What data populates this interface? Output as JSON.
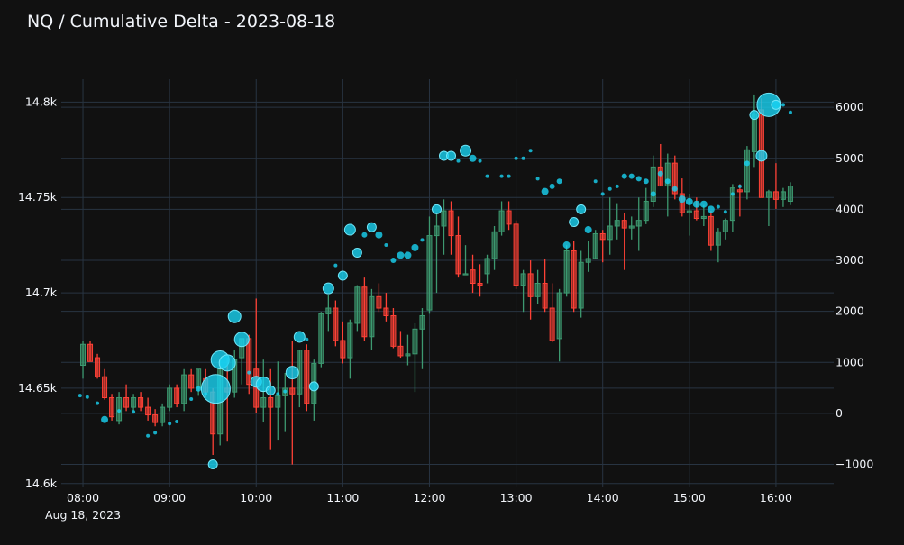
{
  "title": "NQ / Cumulative Delta - 2023-08-18",
  "colors": {
    "background": "#111111",
    "grid": "#283442",
    "axis_text": "#f2f5fa",
    "up": "#3d9970",
    "down": "#ff4136",
    "bubble": "#19d3f3"
  },
  "chart_data": {
    "type": "candlestick",
    "title": "NQ / Cumulative Delta - 2023-08-18",
    "x_date_label": "Aug 18, 2023",
    "x_ticks": [
      "08:00",
      "09:00",
      "10:00",
      "11:00",
      "12:00",
      "13:00",
      "14:00",
      "15:00",
      "16:00"
    ],
    "xlim": [
      "07:45",
      "16:40"
    ],
    "y_left": {
      "ticks": [
        14600,
        14650,
        14700,
        14750,
        14800
      ],
      "tick_labels": [
        "14.6k",
        "14.65k",
        "14.7k",
        "14.75k",
        "14.8k"
      ],
      "ylim": [
        14598,
        14812
      ]
    },
    "y_right": {
      "ticks": [
        -1000,
        0,
        1000,
        2000,
        3000,
        4000,
        5000,
        6000
      ],
      "tick_labels": [
        "−1000",
        "0",
        "1000",
        "2000",
        "3000",
        "4000",
        "5000",
        "6000"
      ],
      "ylim": [
        -1450,
        6550
      ]
    },
    "candles": [
      [
        "08:00",
        14662,
        14675,
        14655,
        14673
      ],
      [
        "08:05",
        14673,
        14675,
        14664,
        14664
      ],
      [
        "08:10",
        14666,
        14668,
        14655,
        14656
      ],
      [
        "08:15",
        14656,
        14660,
        14644,
        14645
      ],
      [
        "08:20",
        14645,
        14647,
        14633,
        14635
      ],
      [
        "08:25",
        14633,
        14648,
        14631,
        14645
      ],
      [
        "08:30",
        14645,
        14652,
        14638,
        14640
      ],
      [
        "08:35",
        14640,
        14647,
        14638,
        14645
      ],
      [
        "08:40",
        14645,
        14648,
        14638,
        14640
      ],
      [
        "08:45",
        14640,
        14645,
        14633,
        14636
      ],
      [
        "08:50",
        14636,
        14639,
        14630,
        14632
      ],
      [
        "08:55",
        14632,
        14642,
        14630,
        14640
      ],
      [
        "09:00",
        14640,
        14652,
        14638,
        14650
      ],
      [
        "09:05",
        14650,
        14652,
        14640,
        14642
      ],
      [
        "09:10",
        14642,
        14660,
        14638,
        14657
      ],
      [
        "09:15",
        14657,
        14660,
        14648,
        14650
      ],
      [
        "09:20",
        14650,
        14660,
        14646,
        14660
      ],
      [
        "09:25",
        14655,
        14660,
        14645,
        14648
      ],
      [
        "09:30",
        14648,
        14650,
        14615,
        14626
      ],
      [
        "09:35",
        14626,
        14665,
        14620,
        14660
      ],
      [
        "09:40",
        14650,
        14666,
        14622,
        14648
      ],
      [
        "09:45",
        14648,
        14670,
        14645,
        14665
      ],
      [
        "09:50",
        14666,
        14676,
        14652,
        14676
      ],
      [
        "09:55",
        14676,
        14678,
        14647,
        14652
      ],
      [
        "10:00",
        14660,
        14697,
        14637,
        14640
      ],
      [
        "10:05",
        14640,
        14665,
        14632,
        14645
      ],
      [
        "10:10",
        14645,
        14660,
        14618,
        14640
      ],
      [
        "10:15",
        14640,
        14664,
        14623,
        14646
      ],
      [
        "10:20",
        14646,
        14658,
        14627,
        14650
      ],
      [
        "10:25",
        14650,
        14675,
        14610,
        14647
      ],
      [
        "10:30",
        14647,
        14670,
        14640,
        14670
      ],
      [
        "10:35",
        14670,
        14673,
        14638,
        14642
      ],
      [
        "10:40",
        14642,
        14665,
        14633,
        14663
      ],
      [
        "10:45",
        14663,
        14690,
        14661,
        14689
      ],
      [
        "10:50",
        14689,
        14699,
        14680,
        14692
      ],
      [
        "10:55",
        14692,
        14696,
        14672,
        14675
      ],
      [
        "11:00",
        14675,
        14685,
        14663,
        14666
      ],
      [
        "11:05",
        14666,
        14686,
        14655,
        14684
      ],
      [
        "11:10",
        14684,
        14704,
        14680,
        14703
      ],
      [
        "11:15",
        14703,
        14708,
        14675,
        14677
      ],
      [
        "11:20",
        14677,
        14702,
        14670,
        14698
      ],
      [
        "11:25",
        14698,
        14705,
        14690,
        14692
      ],
      [
        "11:30",
        14692,
        14700,
        14685,
        14688
      ],
      [
        "11:35",
        14688,
        14692,
        14671,
        14672
      ],
      [
        "11:40",
        14672,
        14680,
        14666,
        14667
      ],
      [
        "11:45",
        14667,
        14678,
        14662,
        14668
      ],
      [
        "11:50",
        14668,
        14684,
        14648,
        14681
      ],
      [
        "11:55",
        14681,
        14692,
        14660,
        14688
      ],
      [
        "12:00",
        14691,
        14740,
        14689,
        14730
      ],
      [
        "12:05",
        14730,
        14742,
        14700,
        14735
      ],
      [
        "12:10",
        14735,
        14749,
        14720,
        14743
      ],
      [
        "12:15",
        14743,
        14748,
        14720,
        14730
      ],
      [
        "12:20",
        14730,
        14740,
        14708,
        14710
      ],
      [
        "12:25",
        14710,
        14725,
        14710,
        14710
      ],
      [
        "12:30",
        14712,
        14720,
        14700,
        14705
      ],
      [
        "12:35",
        14705,
        14715,
        14698,
        14704
      ],
      [
        "12:40",
        14710,
        14720,
        14705,
        14718
      ],
      [
        "12:45",
        14718,
        14735,
        14712,
        14732
      ],
      [
        "12:50",
        14732,
        14748,
        14730,
        14743
      ],
      [
        "12:55",
        14743,
        14748,
        14733,
        14736
      ],
      [
        "13:00",
        14736,
        14738,
        14702,
        14704
      ],
      [
        "13:05",
        14704,
        14712,
        14690,
        14710
      ],
      [
        "13:10",
        14710,
        14717,
        14686,
        14698
      ],
      [
        "13:15",
        14698,
        14712,
        14694,
        14705
      ],
      [
        "13:20",
        14705,
        14718,
        14690,
        14692
      ],
      [
        "13:25",
        14692,
        14705,
        14674,
        14675
      ],
      [
        "13:30",
        14676,
        14702,
        14664,
        14700
      ],
      [
        "13:35",
        14700,
        14725,
        14698,
        14722
      ],
      [
        "13:40",
        14722,
        14727,
        14690,
        14692
      ],
      [
        "13:45",
        14692,
        14722,
        14687,
        14716
      ],
      [
        "13:50",
        14716,
        14727,
        14711,
        14718
      ],
      [
        "13:55",
        14718,
        14733,
        14718,
        14731
      ],
      [
        "14:00",
        14731,
        14733,
        14716,
        14728
      ],
      [
        "14:05",
        14728,
        14750,
        14720,
        14735
      ],
      [
        "14:10",
        14735,
        14747,
        14728,
        14738
      ],
      [
        "14:15",
        14738,
        14742,
        14712,
        14734
      ],
      [
        "14:20",
        14734,
        14740,
        14728,
        14735
      ],
      [
        "14:25",
        14735,
        14750,
        14722,
        14738
      ],
      [
        "14:30",
        14738,
        14755,
        14736,
        14748
      ],
      [
        "14:35",
        14748,
        14772,
        14745,
        14766
      ],
      [
        "14:40",
        14766,
        14778,
        14756,
        14756
      ],
      [
        "14:45",
        14756,
        14773,
        14740,
        14768
      ],
      [
        "14:50",
        14768,
        14772,
        14749,
        14752
      ],
      [
        "14:55",
        14752,
        14760,
        14740,
        14742
      ],
      [
        "15:00",
        14742,
        14752,
        14730,
        14743
      ],
      [
        "15:05",
        14743,
        14750,
        14738,
        14739
      ],
      [
        "15:10",
        14739,
        14746,
        14735,
        14740
      ],
      [
        "15:15",
        14740,
        14743,
        14722,
        14725
      ],
      [
        "15:20",
        14725,
        14734,
        14716,
        14732
      ],
      [
        "15:25",
        14732,
        14739,
        14728,
        14738
      ],
      [
        "15:30",
        14738,
        14757,
        14732,
        14755
      ],
      [
        "15:35",
        14754,
        14757,
        14740,
        14753
      ],
      [
        "15:40",
        14753,
        14777,
        14749,
        14775
      ],
      [
        "15:45",
        14774,
        14804,
        14766,
        14794
      ],
      [
        "15:50",
        14796,
        14802,
        14750,
        14750
      ],
      [
        "15:55",
        14750,
        14754,
        14735,
        14753
      ],
      [
        "16:00",
        14753,
        14768,
        14744,
        14749
      ],
      [
        "16:05",
        14749,
        14755,
        14745,
        14753
      ],
      [
        "16:10",
        14748,
        14758,
        14746,
        14756
      ]
    ],
    "cumulative_delta": [
      [
        "07:58",
        350,
        1
      ],
      [
        "08:03",
        320,
        1
      ],
      [
        "08:10",
        200,
        1
      ],
      [
        "08:15",
        -120,
        3
      ],
      [
        "08:25",
        50,
        1
      ],
      [
        "08:35",
        30,
        1
      ],
      [
        "08:45",
        -440,
        1
      ],
      [
        "08:50",
        -380,
        1
      ],
      [
        "09:00",
        -200,
        1
      ],
      [
        "09:05",
        -160,
        1
      ],
      [
        "09:15",
        280,
        1
      ],
      [
        "09:20",
        480,
        2
      ],
      [
        "09:25",
        380,
        1
      ],
      [
        "09:30",
        -1000,
        4
      ],
      [
        "09:32",
        480,
        15
      ],
      [
        "09:35",
        1050,
        9
      ],
      [
        "09:40",
        990,
        8
      ],
      [
        "09:45",
        1900,
        6
      ],
      [
        "09:50",
        1450,
        7
      ],
      [
        "09:55",
        800,
        1
      ],
      [
        "10:00",
        620,
        5
      ],
      [
        "10:05",
        570,
        7
      ],
      [
        "10:10",
        450,
        4
      ],
      [
        "10:15",
        380,
        1
      ],
      [
        "10:20",
        430,
        1
      ],
      [
        "10:25",
        800,
        6
      ],
      [
        "10:30",
        1500,
        5
      ],
      [
        "10:35",
        1450,
        1
      ],
      [
        "10:40",
        530,
        4
      ],
      [
        "10:50",
        2450,
        5
      ],
      [
        "10:55",
        2900,
        1
      ],
      [
        "11:00",
        2700,
        4
      ],
      [
        "11:05",
        3600,
        5
      ],
      [
        "11:10",
        3150,
        4
      ],
      [
        "11:15",
        3500,
        2
      ],
      [
        "11:20",
        3650,
        4
      ],
      [
        "11:25",
        3500,
        3
      ],
      [
        "11:30",
        3300,
        1
      ],
      [
        "11:35",
        3000,
        2
      ],
      [
        "11:40",
        3100,
        3
      ],
      [
        "11:45",
        3100,
        3
      ],
      [
        "11:50",
        3250,
        3
      ],
      [
        "11:55",
        3400,
        1
      ],
      [
        "12:05",
        4000,
        4
      ],
      [
        "12:10",
        5050,
        4
      ],
      [
        "12:15",
        5050,
        4
      ],
      [
        "12:20",
        4950,
        1
      ],
      [
        "12:25",
        5150,
        5
      ],
      [
        "12:30",
        5000,
        3
      ],
      [
        "12:35",
        4950,
        1
      ],
      [
        "12:40",
        4650,
        1
      ],
      [
        "12:50",
        4650,
        1
      ],
      [
        "12:55",
        4650,
        1
      ],
      [
        "13:00",
        5000,
        1
      ],
      [
        "13:05",
        5000,
        1
      ],
      [
        "13:10",
        5150,
        1
      ],
      [
        "13:15",
        4600,
        1
      ],
      [
        "13:20",
        4350,
        3
      ],
      [
        "13:25",
        4450,
        2
      ],
      [
        "13:30",
        4550,
        2
      ],
      [
        "13:35",
        3300,
        3
      ],
      [
        "13:40",
        3750,
        4
      ],
      [
        "13:45",
        4000,
        4
      ],
      [
        "13:50",
        3600,
        3
      ],
      [
        "13:55",
        4550,
        1
      ],
      [
        "14:00",
        4300,
        1
      ],
      [
        "14:05",
        4400,
        1
      ],
      [
        "14:10",
        4450,
        1
      ],
      [
        "14:15",
        4650,
        2
      ],
      [
        "14:20",
        4650,
        2
      ],
      [
        "14:25",
        4600,
        2
      ],
      [
        "14:30",
        4550,
        2
      ],
      [
        "14:35",
        4300,
        2
      ],
      [
        "14:40",
        4700,
        2
      ],
      [
        "14:45",
        4550,
        2
      ],
      [
        "14:50",
        4400,
        2
      ],
      [
        "14:55",
        4200,
        3
      ],
      [
        "15:00",
        4150,
        3
      ],
      [
        "15:05",
        4100,
        3
      ],
      [
        "15:10",
        4100,
        3
      ],
      [
        "15:15",
        4000,
        3
      ],
      [
        "15:20",
        4050,
        1
      ],
      [
        "15:25",
        3950,
        1
      ],
      [
        "15:30",
        4300,
        1
      ],
      [
        "15:35",
        4450,
        1
      ],
      [
        "15:40",
        4900,
        2
      ],
      [
        "15:45",
        5850,
        4
      ],
      [
        "15:50",
        5050,
        5
      ],
      [
        "15:55",
        6050,
        12
      ],
      [
        "16:00",
        6050,
        4
      ],
      [
        "16:05",
        6050,
        1
      ],
      [
        "16:10",
        5900,
        1
      ]
    ]
  }
}
